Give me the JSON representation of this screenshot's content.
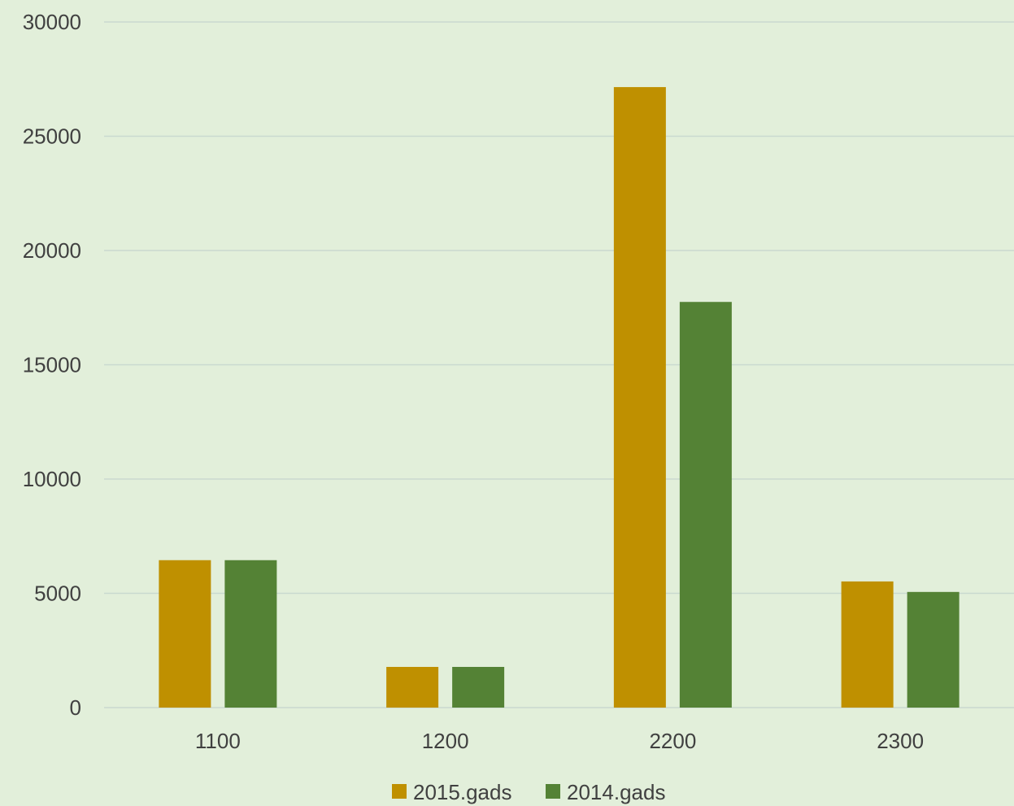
{
  "background_color": "#e2efda",
  "gridline_color": "#c9d9cf",
  "chart_data": {
    "type": "bar",
    "title": "",
    "xlabel": "",
    "ylabel": "",
    "categories": [
      "1100",
      "1200",
      "2200",
      "2300"
    ],
    "series": [
      {
        "name": "2015.gads",
        "color": "#bf9000",
        "values": [
          6450,
          1780,
          27150,
          5520
        ]
      },
      {
        "name": "2014.gads",
        "color": "#548235",
        "values": [
          6450,
          1780,
          17750,
          5060
        ]
      }
    ],
    "ylim": [
      0,
      30000
    ],
    "yticks": [
      0,
      5000,
      10000,
      15000,
      20000,
      25000,
      30000
    ],
    "grid": true,
    "legend_position": "bottom"
  }
}
